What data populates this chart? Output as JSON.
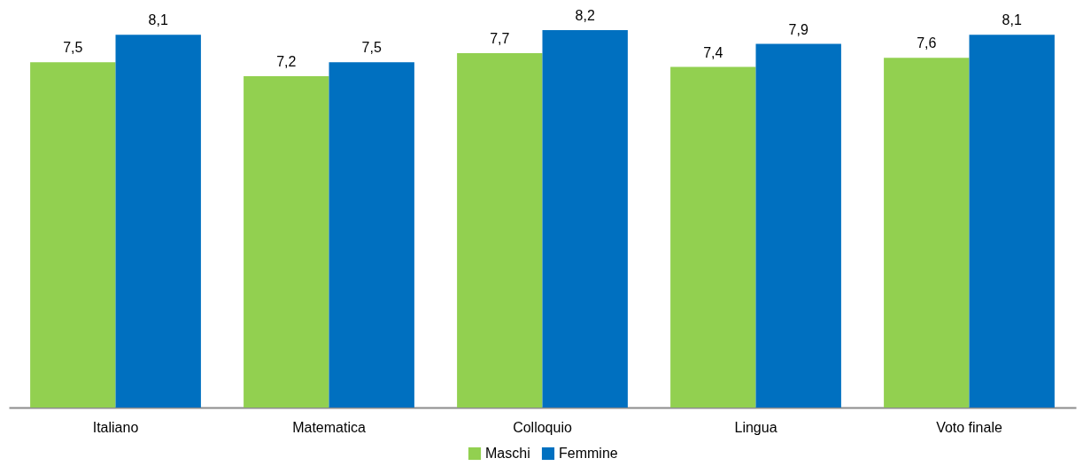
{
  "chart_data": {
    "type": "bar",
    "categories": [
      "Italiano",
      "Matematica",
      "Colloquio",
      "Lingua",
      "Voto finale"
    ],
    "series": [
      {
        "name": "Maschi",
        "color": "#92d050",
        "values": [
          7.5,
          7.2,
          7.7,
          7.4,
          7.6
        ],
        "value_labels": [
          "7,5",
          "7,2",
          "7,7",
          "7,4",
          "7,6"
        ]
      },
      {
        "name": "Femmine",
        "color": "#0070c0",
        "values": [
          8.1,
          7.5,
          8.2,
          7.9,
          8.1
        ],
        "value_labels": [
          "8,1",
          "7,5",
          "8,2",
          "7,9",
          "8,1"
        ]
      }
    ],
    "legend": "bottom"
  }
}
